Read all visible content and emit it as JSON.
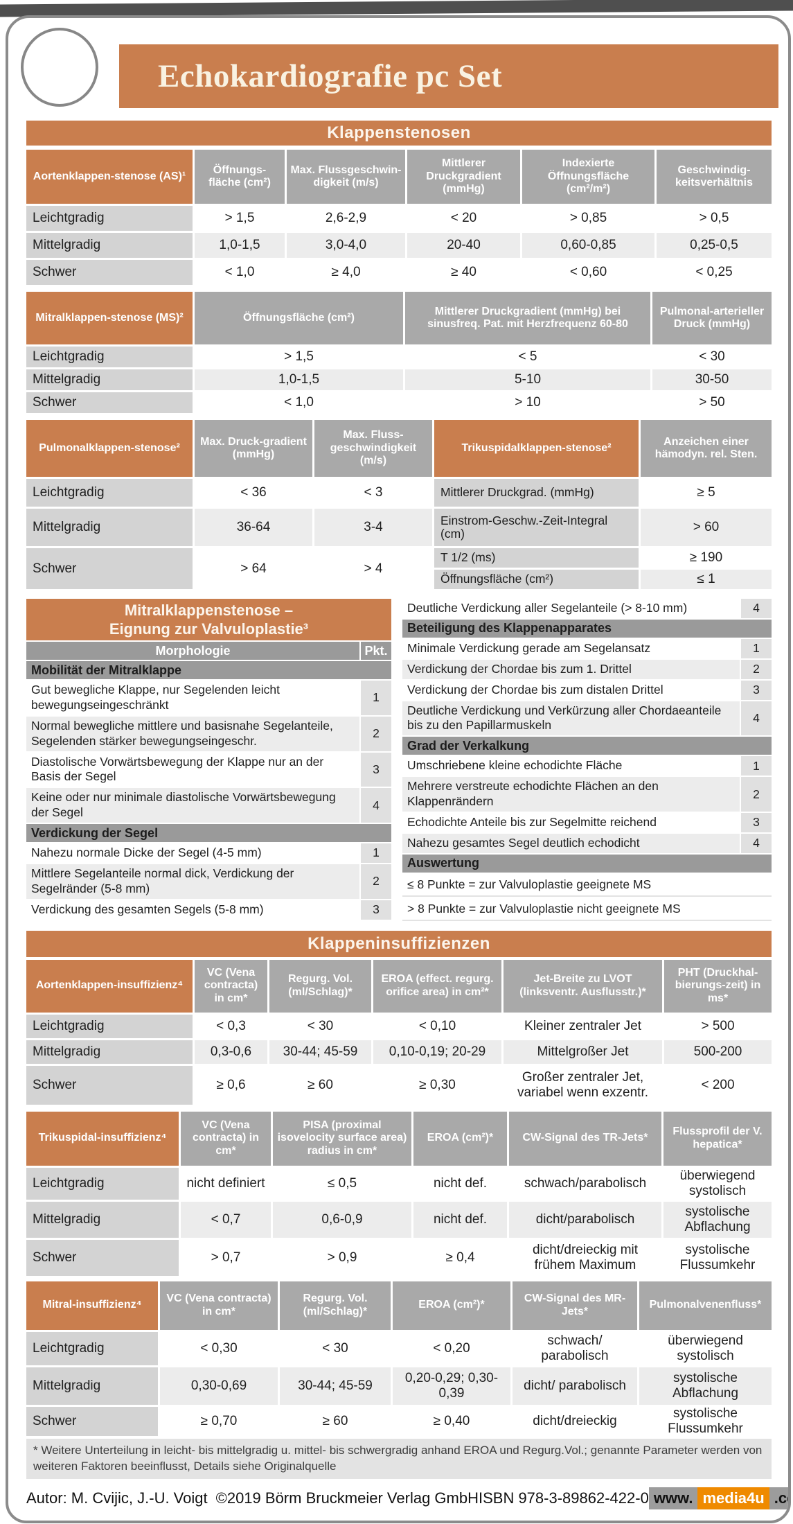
{
  "title": "Echokardiografie pc Set",
  "banners": {
    "stenosen": "Klappenstenosen",
    "insuffizienzen": "Klappeninsuffizienzen"
  },
  "grade_tables": {
    "as": {
      "title": "Aortenklappen-stenose (AS)¹",
      "cols": [
        "Öffnungs-fläche (cm²)",
        "Max. Flussgeschwin-digkeit (m/s)",
        "Mittlerer Druckgradient (mmHg)",
        "Indexierte Öffnungsfläche (cm²/m²)",
        "Geschwindig-keitsverhältnis"
      ],
      "rows": [
        [
          "Leichtgradig",
          "> 1,5",
          "2,6-2,9",
          "< 20",
          "> 0,85",
          "> 0,5"
        ],
        [
          "Mittelgradig",
          "1,0-1,5",
          "3,0-4,0",
          "20-40",
          "0,60-0,85",
          "0,25-0,5"
        ],
        [
          "Schwer",
          "< 1,0",
          "≥ 4,0",
          "≥ 40",
          "< 0,60",
          "< 0,25"
        ]
      ]
    },
    "ms": {
      "title": "Mitralklappen-stenose (MS)²",
      "cols": [
        "Öffnungsfläche (cm²)",
        "Mittlerer Druckgradient (mmHg) bei sinusfreq. Pat. mit Herzfrequenz 60-80",
        "Pulmonal-arterieller Druck (mmHg)"
      ],
      "rows": [
        [
          "Leichtgradig",
          "> 1,5",
          "< 5",
          "< 30"
        ],
        [
          "Mittelgradig",
          "1,0-1,5",
          "5-10",
          "30-50"
        ],
        [
          "Schwer",
          "< 1,0",
          "> 10",
          "> 50"
        ]
      ]
    },
    "ai": {
      "title": "Aortenklappen-insuffizienz⁴",
      "cols": [
        "VC (Vena contracta) in cm*",
        "Regurg. Vol. (ml/Schlag)*",
        "EROA (effect. regurg. orifice area) in cm²*",
        "Jet-Breite zu LVOT (linksventr. Ausflusstr.)*",
        "PHT (Druckhal-bierungs-zeit) in ms*"
      ],
      "rows": [
        [
          "Leichtgradig",
          "< 0,3",
          "< 30",
          "< 0,10",
          "Kleiner zentraler Jet",
          "> 500"
        ],
        [
          "Mittelgradig",
          "0,3-0,6",
          "30-44; 45-59",
          "0,10-0,19; 20-29",
          "Mittelgroßer Jet",
          "500-200"
        ],
        [
          "Schwer",
          "≥ 0,6",
          "≥ 60",
          "≥ 0,30",
          "Großer zentraler Jet, variabel wenn exzentr.",
          "< 200"
        ]
      ]
    },
    "ti": {
      "title": "Trikuspidal-insuffizienz⁴",
      "cols": [
        "VC (Vena contracta) in cm*",
        "PISA (proximal isovelocity surface area) radius in cm*",
        "EROA (cm²)*",
        "CW-Signal des TR-Jets*",
        "Flussprofil der V. hepatica*"
      ],
      "rows": [
        [
          "Leichtgradig",
          "nicht definiert",
          "≤ 0,5",
          "nicht def.",
          "schwach/parabolisch",
          "überwiegend systolisch"
        ],
        [
          "Mittelgradig",
          "< 0,7",
          "0,6-0,9",
          "nicht def.",
          "dicht/parabolisch",
          "systolische Abflachung"
        ],
        [
          "Schwer",
          "> 0,7",
          "> 0,9",
          "≥ 0,4",
          "dicht/dreieckig mit frühem Maximum",
          "systolische Flussumkehr"
        ]
      ]
    },
    "mi": {
      "title": "Mitral-insuffizienz⁴",
      "cols": [
        "VC (Vena contracta) in cm*",
        "Regurg. Vol. (ml/Schlag)*",
        "EROA (cm²)*",
        "CW-Signal des MR-Jets*",
        "Pulmonalvenenfluss*"
      ],
      "rows": [
        [
          "Leichtgradig",
          "< 0,30",
          "< 30",
          "< 0,20",
          "schwach/ parabolisch",
          "überwiegend systolisch"
        ],
        [
          "Mittelgradig",
          "0,30-0,69",
          "30-44; 45-59",
          "0,20-0,29; 0,30-0,39",
          "dicht/ parabolisch",
          "systolische Abflachung"
        ],
        [
          "Schwer",
          "≥ 0,70",
          "≥ 60",
          "≥ 0,40",
          "dicht/dreieckig",
          "systolische Flussumkehr"
        ]
      ]
    }
  },
  "ps_ts": {
    "ps_title": "Pulmonalklappen-stenose²",
    "ps_cols": [
      "Max. Druck-gradient (mmHg)",
      "Max. Fluss-geschwindigkeit (m/s)"
    ],
    "ts_title": "Trikuspidalklappen-stenose²",
    "ts_col": "Anzeichen einer hämodyn. rel. Sten.",
    "rows_left": [
      [
        "Leichtgradig",
        "< 36",
        "< 3"
      ],
      [
        "Mittelgradig",
        "36-64",
        "3-4"
      ],
      [
        "Schwer",
        "> 64",
        "> 4"
      ]
    ],
    "rows_right": [
      [
        "Mittlerer Druckgrad. (mmHg)",
        "≥ 5"
      ],
      [
        "Einstrom-Geschw.-Zeit-Integral (cm)",
        "> 60"
      ],
      [
        "T 1/2 (ms)",
        "≥ 190"
      ],
      [
        "Öffnungsfläche (cm²)",
        "≤ 1"
      ]
    ]
  },
  "valvuloplastie": {
    "title": "Mitralklappenstenose – Eignung zur Valvuloplastie³",
    "morph_header": "Morphologie",
    "pkt_header": "Pkt.",
    "left_items": [
      {
        "s": "Mobilität der Mitralklappe"
      },
      {
        "t": "Gut bewegliche Klappe, nur Segelenden leicht bewegungseingeschränkt",
        "p": "1"
      },
      {
        "t": "Normal bewegliche mittlere und basisnahe Segelanteile, Segelenden stärker bewegungseingeschr.",
        "p": "2"
      },
      {
        "t": "Diastolische Vorwärtsbewegung der Klappe nur an der Basis der Segel",
        "p": "3"
      },
      {
        "t": "Keine oder nur minimale diastolische Vorwärtsbewegung der Segel",
        "p": "4"
      },
      {
        "s": "Verdickung der Segel"
      },
      {
        "t": "Nahezu normale Dicke der Segel (4-5 mm)",
        "p": "1"
      },
      {
        "t": "Mittlere Segelanteile normal dick, Verdickung der Segelränder (5-8 mm)",
        "p": "2"
      },
      {
        "t": "Verdickung des gesamten Segels (5-8 mm)",
        "p": "3"
      }
    ],
    "right_items": [
      {
        "t": "Deutliche Verdickung aller Segelanteile (> 8-10 mm)",
        "p": "4"
      },
      {
        "s": "Beteiligung des Klappenapparates"
      },
      {
        "t": "Minimale Verdickung gerade am Segelansatz",
        "p": "1"
      },
      {
        "t": "Verdickung der Chordae bis zum 1. Drittel",
        "p": "2"
      },
      {
        "t": "Verdickung der Chordae bis zum distalen Drittel",
        "p": "3"
      },
      {
        "t": "Deutliche Verdickung und Verkürzung aller Chordaeanteile bis zu den Papillarmuskeln",
        "p": "4"
      },
      {
        "s": "Grad der Verkalkung"
      },
      {
        "t": "Umschriebene kleine echodichte Fläche",
        "p": "1"
      },
      {
        "t": "Mehrere verstreute echodichte Flächen an den Klappenrändern",
        "p": "2"
      },
      {
        "t": "Echodichte Anteile bis zur Segelmitte reichend",
        "p": "3"
      },
      {
        "t": "Nahezu gesamtes Segel deutlich echodicht",
        "p": "4"
      },
      {
        "s": "Auswertung"
      },
      {
        "l": "≤ 8 Punkte = zur Valvuloplastie geeignete MS"
      },
      {
        "l": "> 8 Punkte = zur Valvuloplastie nicht geeignete MS"
      }
    ]
  },
  "footnote": "* Weitere Unterteilung in leicht- bis mittelgradig u. mittel- bis schwergradig anhand EROA und Regurg.Vol.; genannte Parameter werden von weiteren Faktoren beeinflusst, Details siehe Originalquelle",
  "footer": {
    "author": "Autor: M. Cvijic, J.-U. Voigt",
    "copyright": "©2019 Börm Bruckmeier Verlag GmbH",
    "isbn": "ISBN 978-3-89862-422-0",
    "site_www": "www.",
    "site_name": "media4u",
    "site_tld": ".com"
  },
  "colors": {
    "accent_orange": "#c97e4e",
    "header_gray": "#a9a9a9",
    "section_gray": "#9a9a9a",
    "label_gray": "#d3d3d3",
    "badge_orange": "#ef8a00",
    "badge_gray": "#9c9c9c"
  }
}
